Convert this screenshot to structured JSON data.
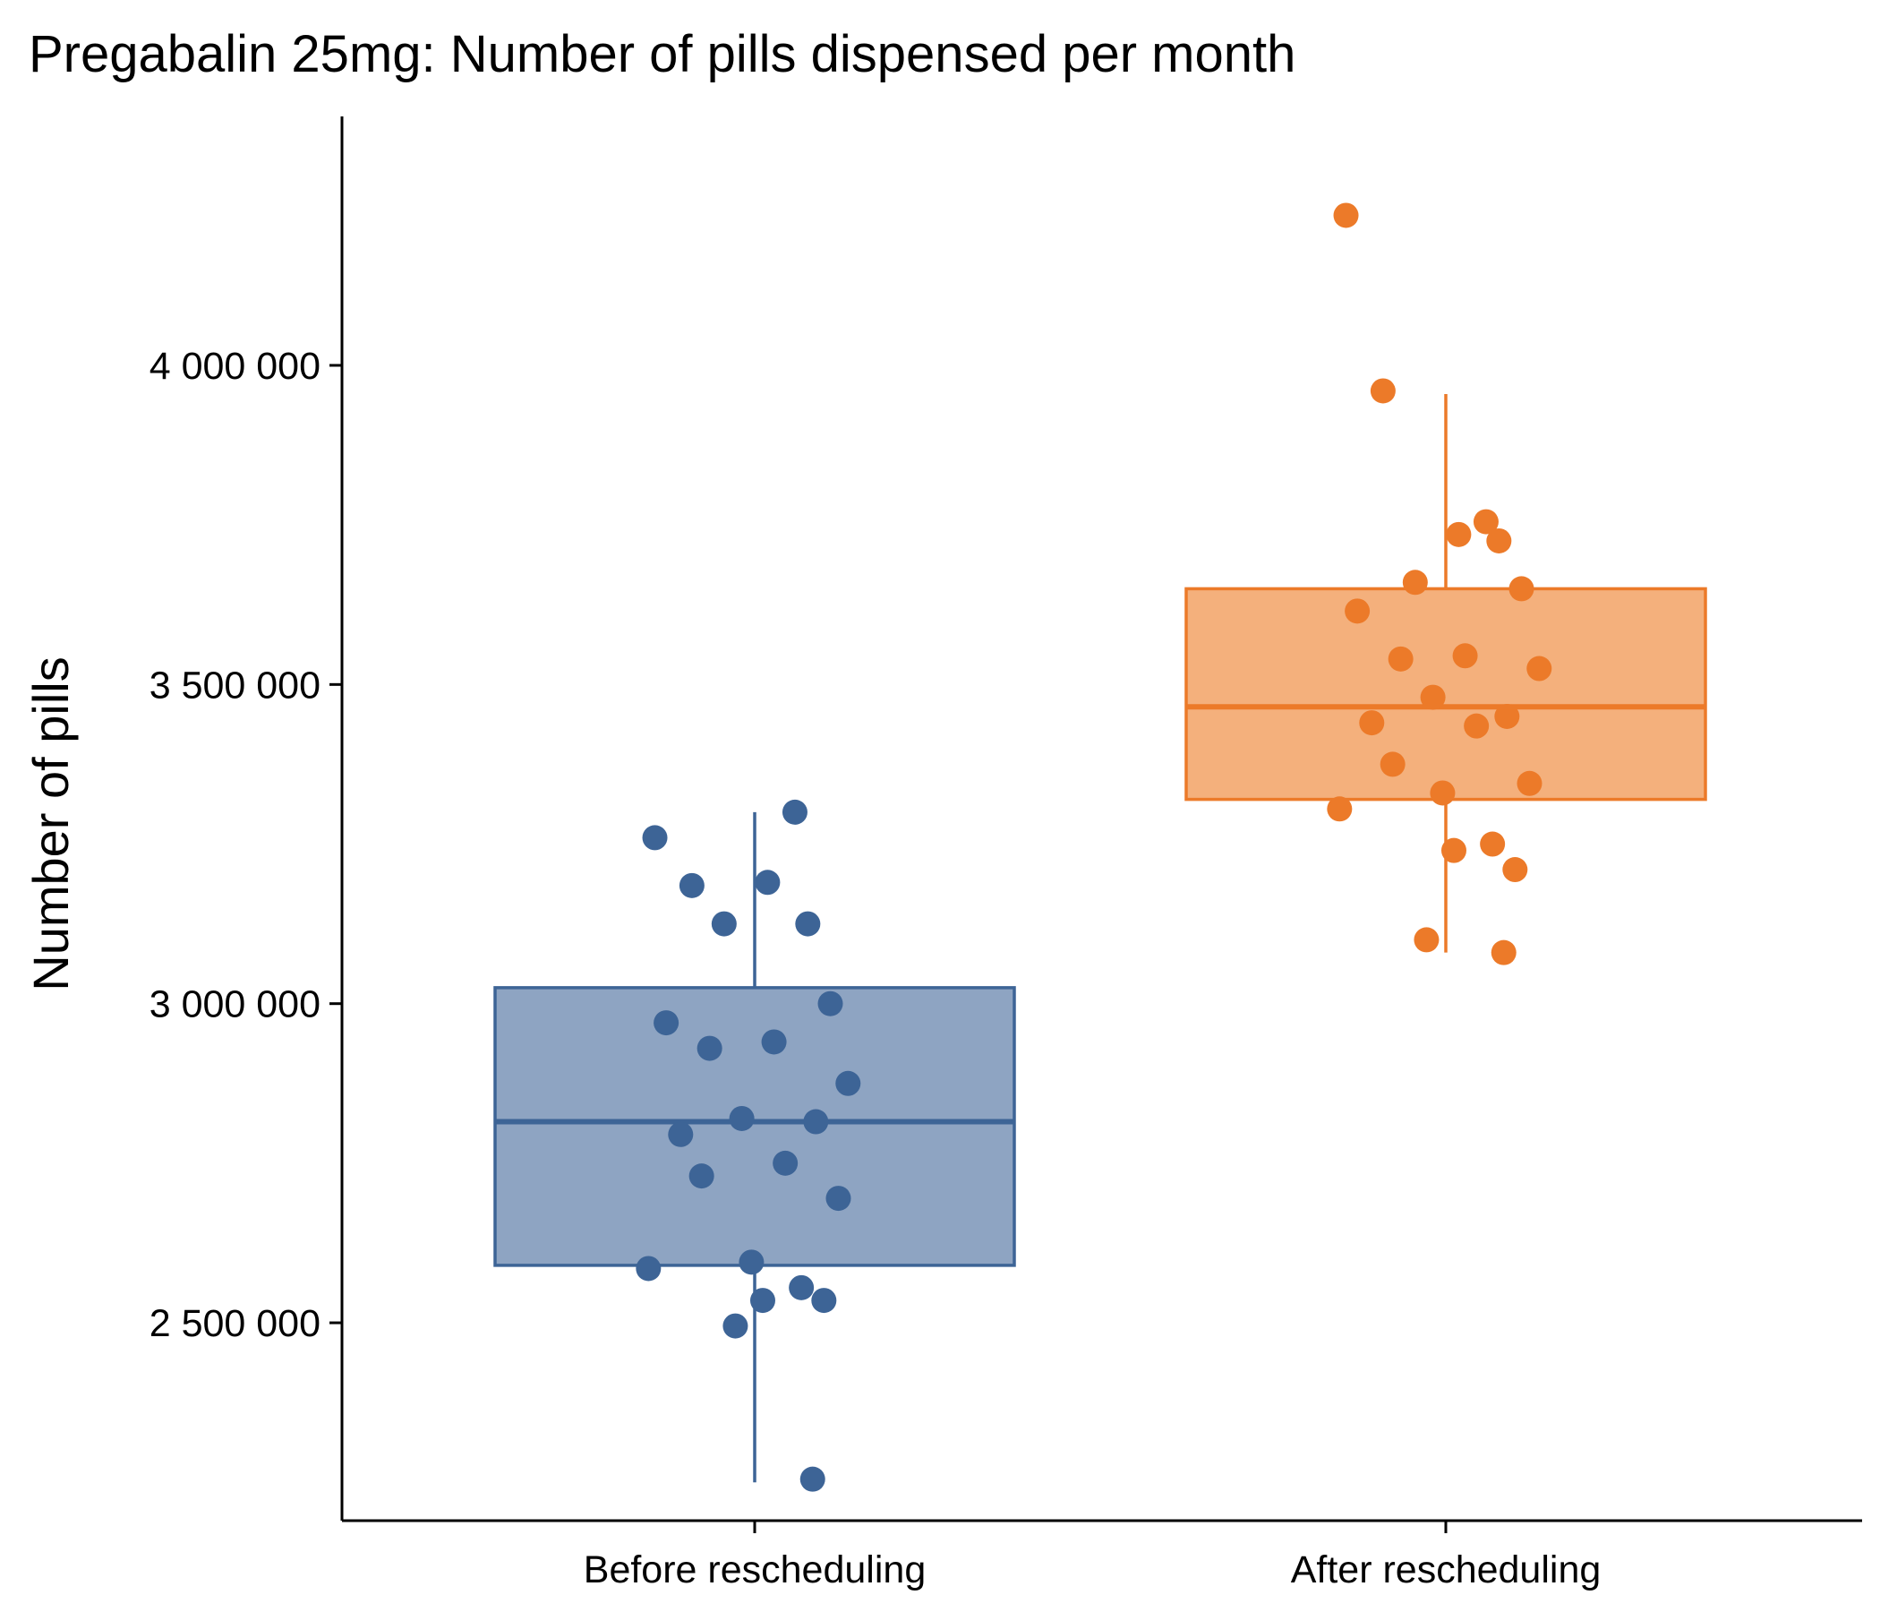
{
  "chart_data": {
    "type": "box",
    "title": "Pregabalin 25mg: Number of pills dispensed per month",
    "ylabel": "Number of pills",
    "xlabel": "",
    "ylim": [
      2190000,
      4390000
    ],
    "yticks": [
      2500000,
      3000000,
      3500000,
      4000000
    ],
    "ytick_labels": [
      "2 500 000",
      "3 000 000",
      "3 500 000",
      "4 000 000"
    ],
    "categories": [
      "Before rescheduling",
      "After rescheduling"
    ],
    "grid": false,
    "legend": "none",
    "boxes": [
      {
        "category": "Before rescheduling",
        "color": "#3d6496",
        "fill": "#8ea4c2",
        "whisker_low": 2250000,
        "q1": 2590000,
        "median": 2815000,
        "q3": 3025000,
        "whisker_high": 3300000,
        "points": [
          3260000,
          3185000,
          3300000,
          3190000,
          3125000,
          3125000,
          3000000,
          2970000,
          2940000,
          2930000,
          2875000,
          2820000,
          2815000,
          2795000,
          2750000,
          2730000,
          2695000,
          2595000,
          2585000,
          2555000,
          2535000,
          2535000,
          2495000,
          2255000
        ]
      },
      {
        "category": "After rescheduling",
        "color": "#ec7a29",
        "fill": "#f4b07c",
        "whisker_low": 3080000,
        "q1": 3320000,
        "median": 3465000,
        "q3": 3650000,
        "whisker_high": 3955000,
        "points": [
          4235000,
          3960000,
          3755000,
          3735000,
          3725000,
          3660000,
          3650000,
          3615000,
          3545000,
          3540000,
          3525000,
          3480000,
          3450000,
          3440000,
          3435000,
          3375000,
          3345000,
          3330000,
          3305000,
          3250000,
          3240000,
          3210000,
          3100000,
          3080000
        ]
      }
    ]
  }
}
